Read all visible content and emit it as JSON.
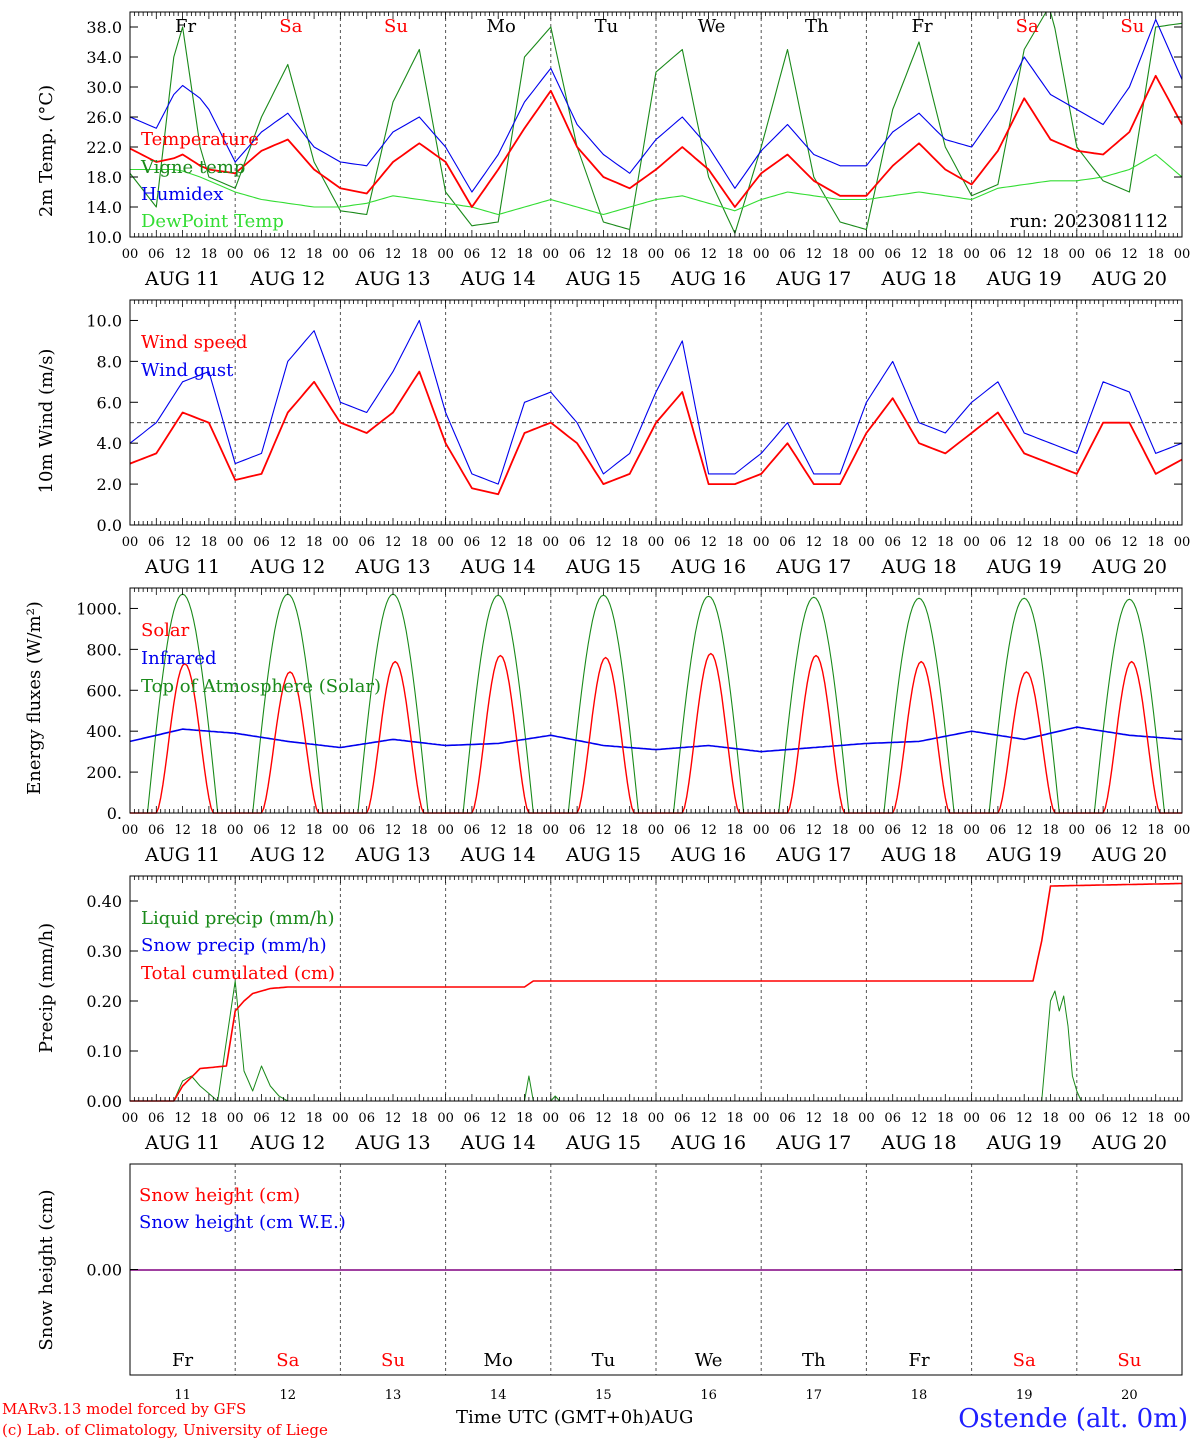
{
  "days": [
    "Fr",
    "Sa",
    "Su",
    "Mo",
    "Tu",
    "We",
    "Th",
    "Fr",
    "Sa",
    "Su"
  ],
  "day_colors": [
    "#000000",
    "#ff0000",
    "#ff0000",
    "#000000",
    "#000000",
    "#000000",
    "#000000",
    "#000000",
    "#ff0000",
    "#ff0000"
  ],
  "dates": [
    "AUG 11",
    "AUG 12",
    "AUG 13",
    "AUG 14",
    "AUG 15",
    "AUG 16",
    "AUG 17",
    "AUG 18",
    "AUG 19",
    "AUG 20"
  ],
  "hour_ticks": [
    "00",
    "06",
    "12",
    "18"
  ],
  "final_hour_tick": "00",
  "bottom_day_numbers": [
    "11",
    "12",
    "13",
    "14",
    "15",
    "16",
    "17",
    "18",
    "19",
    "20"
  ],
  "bottom_axis_label": "Time UTC (GMT+0h)AUG",
  "credits": [
    "MARv3.13 model forced by GFS",
    "(c) Lab. of Climatology, University of Liege"
  ],
  "station": "Ostende (alt. 0m)",
  "colors": {
    "red": "#ff0000",
    "green": "#1a8a1a",
    "blue": "#0000ee",
    "lightgreen": "#33dd33",
    "purple": "#800080"
  },
  "chart_data": [
    {
      "type": "line",
      "ylabel": "2m Temp. (°C)",
      "ylim": [
        10,
        40
      ],
      "yticks": [
        "10.0",
        "14.0",
        "18.0",
        "22.0",
        "26.0",
        "30.0",
        "34.0",
        "38.0"
      ],
      "annotation": "run: 2023081112",
      "x_hours": [
        0,
        6,
        10,
        12,
        16,
        18,
        24,
        30,
        36,
        42,
        48,
        54,
        60,
        66,
        72,
        78,
        84,
        90,
        96,
        102,
        108,
        114,
        120,
        126,
        132,
        138,
        144,
        150,
        156,
        162,
        168,
        174,
        180,
        186,
        192,
        198,
        204,
        210,
        216,
        222,
        228,
        234,
        240
      ],
      "series": [
        {
          "name": "Temperature",
          "color": "red",
          "values": [
            21.8,
            20.0,
            20.5,
            21.0,
            19.5,
            19.0,
            18.5,
            21.5,
            23.0,
            19.0,
            16.5,
            15.8,
            20.0,
            22.5,
            20.0,
            14.0,
            19.0,
            24.5,
            29.5,
            22.0,
            18.0,
            16.5,
            19.0,
            22.0,
            19.0,
            14.0,
            18.5,
            21.0,
            17.5,
            15.5,
            15.5,
            19.5,
            22.5,
            19.0,
            17.0,
            21.5,
            28.5,
            23.0,
            21.5,
            21.0,
            24.0,
            31.5,
            25.0
          ]
        },
        {
          "name": "Vigne temp",
          "color": "green",
          "values": [
            18.5,
            14.0,
            34.0,
            38.0,
            22.0,
            18.0,
            16.5,
            26.0,
            33.0,
            20.0,
            13.5,
            13.0,
            28.0,
            35.0,
            16.0,
            11.5,
            12.0,
            34.0,
            38.0,
            22.0,
            12.0,
            11.0,
            32.0,
            35.0,
            18.0,
            10.5,
            22.0,
            35.0,
            18.0,
            12.0,
            11.0,
            27.0,
            36.0,
            22.0,
            15.5,
            17.0,
            35.0,
            41.0,
            22.0,
            17.5,
            16.0,
            38.0,
            38.5
          ]
        },
        {
          "name": "Humidex",
          "color": "blue",
          "values": [
            26.0,
            24.5,
            29.0,
            30.2,
            28.5,
            27.0,
            20.0,
            24.0,
            26.5,
            22.0,
            20.0,
            19.5,
            24.0,
            26.0,
            22.0,
            16.0,
            21.0,
            28.0,
            32.5,
            25.0,
            21.0,
            18.5,
            23.0,
            26.0,
            22.0,
            16.5,
            21.5,
            25.0,
            21.0,
            19.5,
            19.5,
            24.0,
            26.5,
            23.0,
            22.0,
            27.0,
            34.0,
            29.0,
            27.0,
            25.0,
            30.0,
            39.0,
            31.0
          ]
        },
        {
          "name": "DewPoint Temp",
          "color": "lightgreen",
          "values": [
            19.0,
            19.0,
            19.0,
            18.8,
            18.0,
            17.5,
            16.0,
            15.0,
            14.5,
            14.0,
            14.0,
            14.5,
            15.5,
            15.0,
            14.5,
            14.0,
            13.0,
            14.0,
            15.0,
            14.0,
            13.0,
            14.0,
            15.0,
            15.5,
            14.5,
            13.5,
            15.0,
            16.0,
            15.5,
            15.0,
            15.0,
            15.5,
            16.0,
            15.5,
            15.0,
            16.5,
            17.0,
            17.5,
            17.5,
            18.0,
            19.0,
            21.0,
            18.0
          ]
        }
      ]
    },
    {
      "type": "line",
      "ylabel": "10m Wind (m/s)",
      "ylim": [
        0,
        11
      ],
      "yticks": [
        "0.0",
        "2.0",
        "4.0",
        "6.0",
        "8.0",
        "10.0"
      ],
      "reference_line": 5.0,
      "x_hours": [
        0,
        6,
        12,
        18,
        24,
        30,
        36,
        42,
        48,
        54,
        60,
        66,
        72,
        78,
        84,
        90,
        96,
        102,
        108,
        114,
        120,
        126,
        132,
        138,
        144,
        150,
        156,
        162,
        168,
        174,
        180,
        186,
        192,
        198,
        204,
        210,
        216,
        222,
        228,
        234,
        240
      ],
      "series": [
        {
          "name": "Wind speed",
          "color": "red",
          "values": [
            3.0,
            3.5,
            5.5,
            5.0,
            2.2,
            2.5,
            5.5,
            7.0,
            5.0,
            4.5,
            5.5,
            7.5,
            4.0,
            1.8,
            1.5,
            4.5,
            5.0,
            4.0,
            2.0,
            2.5,
            5.0,
            6.5,
            2.0,
            2.0,
            2.5,
            4.0,
            2.0,
            2.0,
            4.5,
            6.2,
            4.0,
            3.5,
            4.5,
            5.5,
            3.5,
            3.0,
            2.5,
            5.0,
            5.0,
            2.5,
            3.2
          ]
        },
        {
          "name": "Wind gust",
          "color": "blue",
          "values": [
            4.0,
            5.0,
            7.0,
            7.5,
            3.0,
            3.5,
            8.0,
            9.5,
            6.0,
            5.5,
            7.5,
            10.0,
            5.5,
            2.5,
            2.0,
            6.0,
            6.5,
            5.0,
            2.5,
            3.5,
            6.5,
            9.0,
            2.5,
            2.5,
            3.5,
            5.0,
            2.5,
            2.5,
            6.0,
            8.0,
            5.0,
            4.5,
            6.0,
            7.0,
            4.5,
            4.0,
            3.5,
            7.0,
            6.5,
            3.5,
            4.0
          ]
        }
      ]
    },
    {
      "type": "line",
      "ylabel": "Energy fluxes (W/m²)",
      "ylim": [
        0,
        1100
      ],
      "yticks": [
        "0.",
        "200.",
        "400.",
        "600.",
        "800.",
        "1000."
      ],
      "series": [
        {
          "name": "Solar",
          "color": "red",
          "day_peaks": [
            730,
            690,
            740,
            770,
            760,
            780,
            770,
            740,
            690,
            740
          ]
        },
        {
          "name": "Infrared",
          "color": "blue",
          "x_hours": [
            0,
            12,
            24,
            36,
            48,
            60,
            72,
            84,
            96,
            108,
            120,
            132,
            144,
            156,
            168,
            180,
            192,
            204,
            216,
            228,
            240
          ],
          "values": [
            350,
            410,
            390,
            350,
            320,
            360,
            330,
            340,
            380,
            330,
            310,
            330,
            300,
            320,
            340,
            350,
            400,
            360,
            420,
            380,
            360
          ]
        },
        {
          "name": "Top of Atmosphere (Solar)",
          "color": "green",
          "day_peaks": [
            1070,
            1070,
            1070,
            1065,
            1065,
            1060,
            1055,
            1050,
            1050,
            1045
          ]
        }
      ]
    },
    {
      "type": "line",
      "ylabel": "Precip (mm/h)",
      "ylim": [
        0,
        0.45
      ],
      "yticks": [
        "0.00",
        "0.10",
        "0.20",
        "0.30",
        "0.40"
      ],
      "series": [
        {
          "name": "Liquid precip (mm/h)",
          "color": "green",
          "x_hours": [
            0,
            10,
            12,
            14,
            16,
            20,
            22,
            24,
            26,
            28,
            30,
            32,
            34,
            36,
            90,
            91,
            92,
            96,
            97,
            98,
            208,
            209,
            210,
            211,
            212,
            213,
            214,
            215,
            216,
            217,
            240
          ],
          "values": [
            0,
            0,
            0.04,
            0.05,
            0.03,
            0,
            0.12,
            0.24,
            0.06,
            0.02,
            0.07,
            0.03,
            0.01,
            0,
            0,
            0.05,
            0,
            0,
            0.01,
            0,
            0,
            0.1,
            0.2,
            0.22,
            0.18,
            0.21,
            0.15,
            0.05,
            0.02,
            0,
            0
          ]
        },
        {
          "name": "Snow precip (mm/h)",
          "color": "blue",
          "values": []
        },
        {
          "name": "Total cumulated (cm)",
          "color": "red",
          "x_hours": [
            0,
            10,
            12,
            16,
            22,
            24,
            26,
            28,
            32,
            36,
            48,
            60,
            72,
            84,
            90,
            92,
            96,
            120,
            144,
            168,
            192,
            200,
            206,
            208,
            210,
            240
          ],
          "values": [
            0,
            0,
            0.03,
            0.065,
            0.07,
            0.18,
            0.2,
            0.215,
            0.225,
            0.228,
            0.228,
            0.228,
            0.228,
            0.228,
            0.228,
            0.24,
            0.24,
            0.24,
            0.24,
            0.24,
            0.24,
            0.24,
            0.24,
            0.32,
            0.43,
            0.435
          ]
        }
      ]
    },
    {
      "type": "line",
      "ylabel": "Snow height (cm)",
      "ylim": [
        -1,
        1
      ],
      "yticks": [
        "0.00"
      ],
      "series": [
        {
          "name": "Snow height (cm)",
          "color": "red",
          "values": [
            0,
            0
          ]
        },
        {
          "name": "Snow height (cm W.E.)",
          "color": "blue",
          "values": [
            0,
            0
          ]
        }
      ]
    }
  ]
}
